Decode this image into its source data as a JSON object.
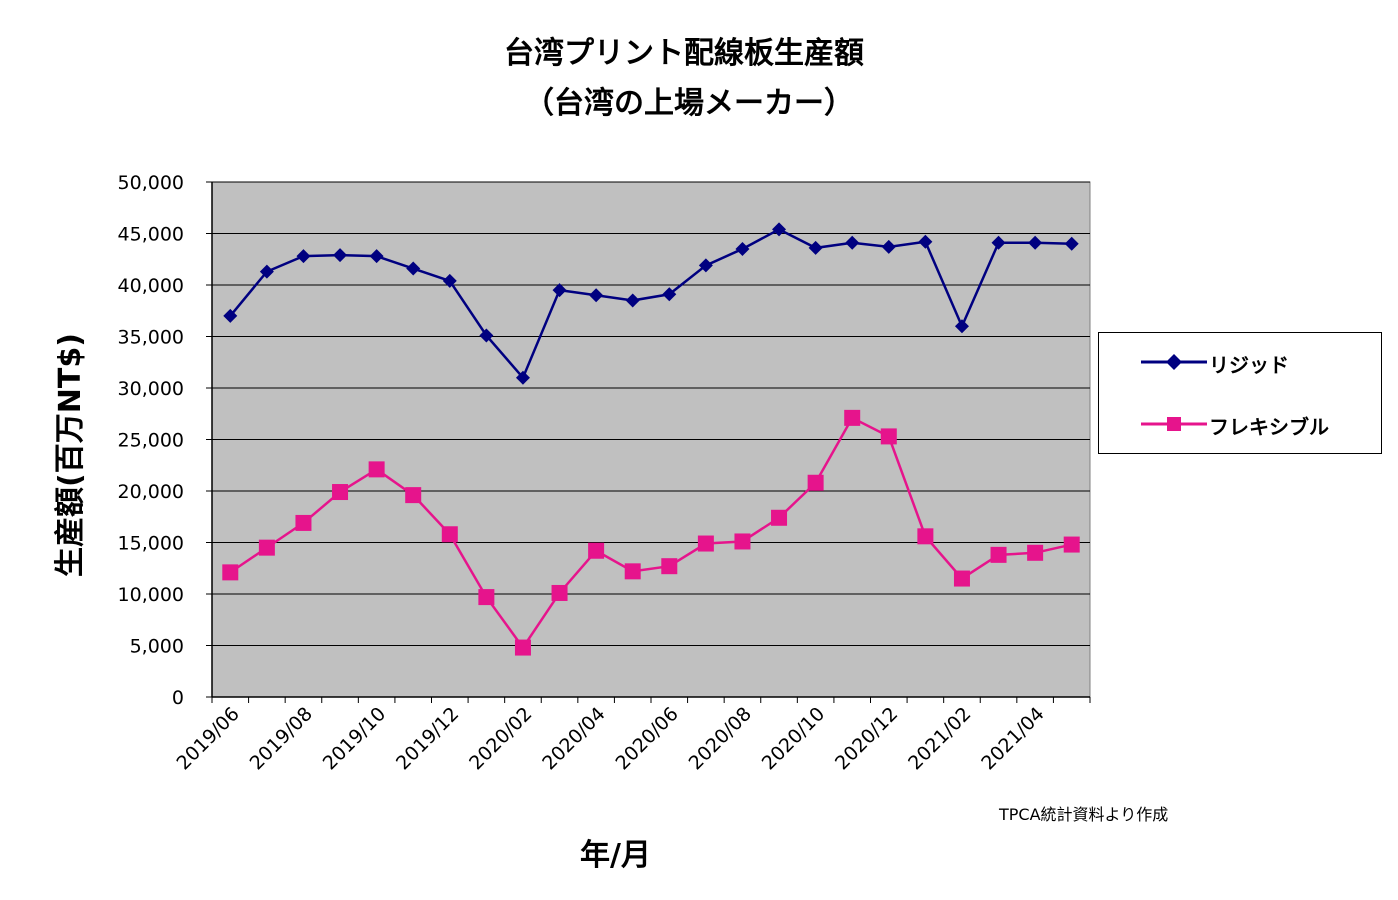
{
  "chart_data": {
    "type": "line",
    "title": "台湾プリント配線板生産額",
    "subtitle": "（台湾の上場メーカー）",
    "ylabel": "生産額(百万NT$)",
    "xlabel": "年/月",
    "ylim": [
      0,
      50000
    ],
    "yticks": [
      "0",
      "5,000",
      "10,000",
      "15,000",
      "20,000",
      "25,000",
      "30,000",
      "35,000",
      "40,000",
      "45,000",
      "50,000"
    ],
    "x_tick_labels": [
      "2019/06",
      "2019/08",
      "2019/10",
      "2019/12",
      "2020/02",
      "2020/04",
      "2020/06",
      "2020/08",
      "2020/10",
      "2020/12",
      "2021/02",
      "2021/04"
    ],
    "categories": [
      "2019/06",
      "2019/07",
      "2019/08",
      "2019/09",
      "2019/10",
      "2019/11",
      "2019/12",
      "2020/01",
      "2020/02",
      "2020/03",
      "2020/04",
      "2020/05",
      "2020/06",
      "2020/07",
      "2020/08",
      "2020/09",
      "2020/10",
      "2020/11",
      "2020/12",
      "2021/01",
      "2021/02",
      "2021/03",
      "2021/04",
      "2021/05"
    ],
    "grid": true,
    "legend_position": "right",
    "series": [
      {
        "name": "リジッド",
        "color": "#000080",
        "marker": "diamond",
        "values": [
          37000,
          41300,
          42800,
          42900,
          42800,
          41600,
          40400,
          35100,
          31000,
          39500,
          39000,
          38500,
          39100,
          41900,
          43500,
          45400,
          43600,
          44100,
          43700,
          44200,
          36000,
          44100,
          44100,
          44000
        ]
      },
      {
        "name": "フレキシブル",
        "color": "#e6148c",
        "marker": "square",
        "values": [
          12100,
          14500,
          16900,
          19900,
          22100,
          19600,
          15800,
          9700,
          4800,
          10100,
          14200,
          12200,
          12700,
          14900,
          15100,
          17400,
          20800,
          27100,
          25300,
          15600,
          11500,
          13800,
          14000,
          14800
        ]
      }
    ],
    "source_note": "TPCA統計資料より作成",
    "plot_bg": "#c0c0c0"
  }
}
